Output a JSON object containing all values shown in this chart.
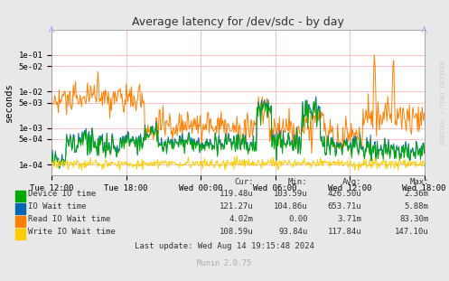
{
  "title": "Average latency for /dev/sdc - by day",
  "ylabel": "seconds",
  "bg_color": "#e8e8e8",
  "plot_bg_color": "#ffffff",
  "grid_color": "#ffbbbb",
  "colors": {
    "device_io": "#00aa00",
    "io_wait": "#0066b3",
    "read_io_wait": "#ff7f00",
    "write_io_wait": "#ffcc00"
  },
  "xtick_labels": [
    "Tue 12:00",
    "Tue 18:00",
    "Wed 00:00",
    "Wed 06:00",
    "Wed 12:00",
    "Wed 18:00"
  ],
  "ytick_vals": [
    0.0001,
    0.0005,
    0.001,
    0.005,
    0.01,
    0.05,
    0.1
  ],
  "ytick_labels": [
    "1e-04",
    "5e-04",
    "1e-03",
    "5e-03",
    "1e-02",
    "5e-02",
    "1e-01"
  ],
  "ymin": 5e-05,
  "ymax": 0.5,
  "legend": [
    {
      "label": "Device IO time",
      "color": "#00aa00",
      "cur": "119.48u",
      "min": "103.59u",
      "avg": "426.50u",
      "max": "2.36m"
    },
    {
      "label": "IO Wait time",
      "color": "#0066b3",
      "cur": "121.27u",
      "min": "104.86u",
      "avg": "653.71u",
      "max": "5.88m"
    },
    {
      "label": "Read IO Wait time",
      "color": "#ff7f00",
      "cur": "4.02m",
      "min": "0.00",
      "avg": "3.71m",
      "max": "83.30m"
    },
    {
      "label": "Write IO Wait time",
      "color": "#ffcc00",
      "cur": "108.59u",
      "min": "93.84u",
      "avg": "117.84u",
      "max": "147.10u"
    }
  ],
  "last_update": "Last update: Wed Aug 14 19:15:48 2024",
  "munin_version": "Munin 2.0.75",
  "watermark": "RRDTOOL / TOBI OETIKER",
  "num_points": 500
}
